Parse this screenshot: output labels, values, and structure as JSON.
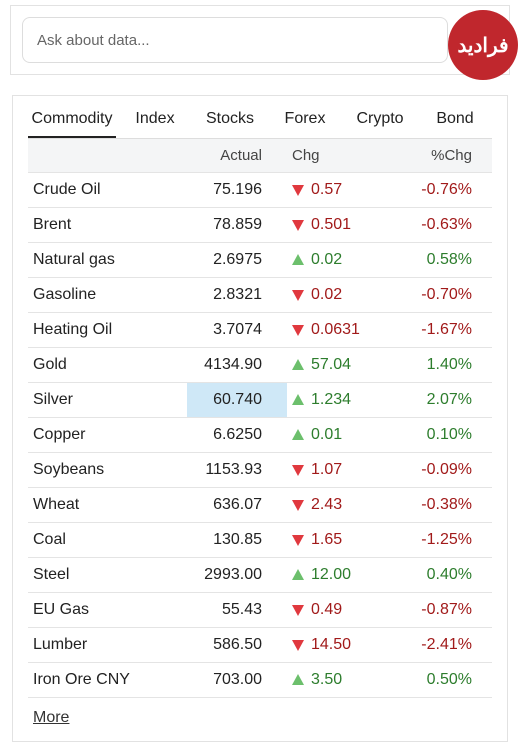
{
  "search": {
    "placeholder": "Ask about data..."
  },
  "logo": {
    "text": "فرادید"
  },
  "tabs": {
    "items": [
      "Commodity",
      "Index",
      "Stocks",
      "Forex",
      "Crypto",
      "Bond"
    ],
    "active": 0
  },
  "table": {
    "header": [
      "",
      "Actual",
      "Chg",
      "%Chg"
    ],
    "highlight": [
      6,
      1
    ],
    "rows": [
      [
        "Crude Oil",
        "75.196",
        "0.57",
        "-0.76%",
        "down"
      ],
      [
        "Brent",
        "78.859",
        "0.501",
        "-0.63%",
        "down"
      ],
      [
        "Natural gas",
        "2.6975",
        "0.02",
        "0.58%",
        "up"
      ],
      [
        "Gasoline",
        "2.8321",
        "0.02",
        "-0.70%",
        "down"
      ],
      [
        "Heating Oil",
        "3.7074",
        "0.0631",
        "-1.67%",
        "down"
      ],
      [
        "Gold",
        "4134.90",
        "57.04",
        "1.40%",
        "up"
      ],
      [
        "Silver",
        "60.740",
        "1.234",
        "2.07%",
        "up"
      ],
      [
        "Copper",
        "6.6250",
        "0.01",
        "0.10%",
        "up"
      ],
      [
        "Soybeans",
        "1153.93",
        "1.07",
        "-0.09%",
        "down"
      ],
      [
        "Wheat",
        "636.07",
        "2.43",
        "-0.38%",
        "down"
      ],
      [
        "Coal",
        "130.85",
        "1.65",
        "-1.25%",
        "down"
      ],
      [
        "Steel",
        "2993.00",
        "12.00",
        "0.40%",
        "up"
      ],
      [
        "EU Gas",
        "55.43",
        "0.49",
        "-0.87%",
        "down"
      ],
      [
        "Lumber",
        "586.50",
        "14.50",
        "-2.41%",
        "down"
      ],
      [
        "Iron Ore CNY",
        "703.00",
        "3.50",
        "0.50%",
        "up"
      ]
    ]
  },
  "footer": {
    "link": "More"
  }
}
